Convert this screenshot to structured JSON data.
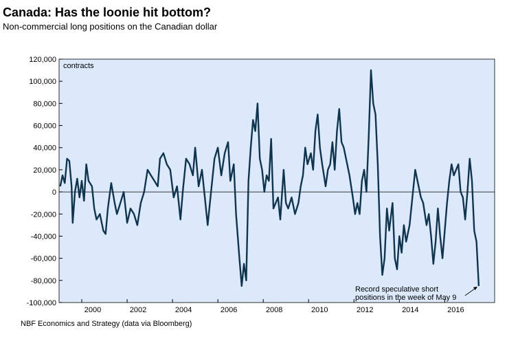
{
  "chart_data": {
    "type": "line",
    "title": "Canada: Has the loonie hit bottom?",
    "subtitle": "Non-commercial long positions on the Canadian dollar",
    "y_unit": "contracts",
    "source": "NBF Economics and Strategy (data via Bloomberg)",
    "annotation": [
      "Record speculative short",
      "positions in the week of May 9"
    ],
    "background": "#dbe9fb",
    "xlim": [
      1999.0,
      2018.2
    ],
    "xticks": [
      2000,
      2002,
      2004,
      2006,
      2008,
      2010,
      2012,
      2014,
      2016
    ],
    "ylim": [
      -100000,
      120000
    ],
    "yticks": [
      {
        "value": -100000,
        "label": "-100,000"
      },
      {
        "value": -80000,
        "label": "-80,000"
      },
      {
        "value": -60000,
        "label": "-60,000"
      },
      {
        "value": -40000,
        "label": "-40,000"
      },
      {
        "value": -20000,
        "label": "-20,000"
      },
      0,
      {
        "value": 20000,
        "label": "20,000"
      },
      {
        "value": 40000,
        "label": "40,000"
      },
      {
        "value": 60000,
        "label": "60,000"
      },
      {
        "value": 80000,
        "label": "80,000"
      },
      {
        "value": 100000,
        "label": "100,000"
      },
      {
        "value": 120000,
        "label": "120,000"
      }
    ],
    "x": [
      1999.05,
      1999.15,
      1999.25,
      1999.35,
      1999.45,
      1999.55,
      1999.6,
      1999.7,
      1999.8,
      1999.9,
      2000.0,
      2000.1,
      2000.2,
      2000.3,
      2000.45,
      2000.55,
      2000.65,
      2000.8,
      2000.95,
      2001.05,
      2001.15,
      2001.3,
      2001.45,
      2001.55,
      2001.7,
      2001.85,
      2002.0,
      2002.15,
      2002.3,
      2002.45,
      2002.6,
      2002.75,
      2002.9,
      2003.05,
      2003.2,
      2003.35,
      2003.45,
      2003.6,
      2003.75,
      2003.9,
      2004.05,
      2004.2,
      2004.35,
      2004.45,
      2004.6,
      2004.75,
      2004.9,
      2005.0,
      2005.15,
      2005.3,
      2005.45,
      2005.55,
      2005.7,
      2005.85,
      2006.0,
      2006.15,
      2006.3,
      2006.45,
      2006.55,
      2006.7,
      2006.8,
      2006.95,
      2007.05,
      2007.15,
      2007.25,
      2007.35,
      2007.45,
      2007.55,
      2007.65,
      2007.75,
      2007.85,
      2007.95,
      2008.05,
      2008.15,
      2008.25,
      2008.35,
      2008.45,
      2008.55,
      2008.65,
      2008.75,
      2008.9,
      2009.0,
      2009.1,
      2009.25,
      2009.4,
      2009.55,
      2009.65,
      2009.75,
      2009.85,
      2009.95,
      2010.1,
      2010.2,
      2010.3,
      2010.4,
      2010.5,
      2010.6,
      2010.75,
      2010.85,
      2010.95,
      2011.05,
      2011.15,
      2011.25,
      2011.35,
      2011.45,
      2011.55,
      2011.7,
      2011.8,
      2011.95,
      2012.05,
      2012.15,
      2012.25,
      2012.35,
      2012.45,
      2012.55,
      2012.65,
      2012.75,
      2012.85,
      2012.95,
      2013.05,
      2013.15,
      2013.25,
      2013.35,
      2013.45,
      2013.55,
      2013.7,
      2013.8,
      2013.9,
      2014.0,
      2014.1,
      2014.2,
      2014.3,
      2014.45,
      2014.6,
      2014.7,
      2014.8,
      2014.95,
      2015.05,
      2015.2,
      2015.3,
      2015.4,
      2015.5,
      2015.6,
      2015.7,
      2015.8,
      2015.9,
      2016.0,
      2016.1,
      2016.2,
      2016.3,
      2016.4,
      2016.5,
      2016.6,
      2016.7,
      2016.8,
      2016.9,
      2017.0,
      2017.1,
      2017.2,
      2017.3,
      2017.4,
      2017.5
    ],
    "series": [
      {
        "name": "Non-commercial long positions",
        "color": "#10344d",
        "values": [
          5000,
          15000,
          8000,
          30000,
          28000,
          5000,
          -28000,
          0,
          12000,
          -5000,
          10000,
          -8000,
          25000,
          10000,
          5000,
          -15000,
          -25000,
          -20000,
          -35000,
          -38000,
          -15000,
          8000,
          -10000,
          -20000,
          -10000,
          0,
          -28000,
          -15000,
          -20000,
          -30000,
          -10000,
          0,
          20000,
          15000,
          10000,
          5000,
          30000,
          35000,
          25000,
          20000,
          -5000,
          5000,
          -25000,
          0,
          30000,
          25000,
          15000,
          40000,
          5000,
          20000,
          -10000,
          -30000,
          0,
          30000,
          40000,
          15000,
          35000,
          45000,
          10000,
          25000,
          -20000,
          -60000,
          -85000,
          -65000,
          -80000,
          10000,
          40000,
          65000,
          55000,
          80000,
          30000,
          20000,
          0,
          15000,
          10000,
          48000,
          -15000,
          -10000,
          -5000,
          -25000,
          20000,
          -10000,
          -15000,
          -5000,
          -20000,
          -10000,
          5000,
          15000,
          40000,
          25000,
          35000,
          20000,
          55000,
          70000,
          40000,
          25000,
          5000,
          20000,
          25000,
          45000,
          20000,
          55000,
          75000,
          45000,
          40000,
          25000,
          15000,
          -5000,
          -20000,
          -10000,
          -20000,
          10000,
          20000,
          0,
          50000,
          110000,
          80000,
          70000,
          25000,
          -40000,
          -75000,
          -60000,
          -15000,
          -35000,
          -10000,
          -60000,
          -70000,
          -40000,
          -55000,
          -30000,
          -45000,
          -30000,
          0,
          20000,
          10000,
          -5000,
          -10000,
          -30000,
          -20000,
          -40000,
          -65000,
          -45000,
          -15000,
          -40000,
          -60000,
          -35000,
          -10000,
          10000,
          25000,
          15000,
          20000,
          25000,
          0,
          -5000,
          -25000,
          0,
          30000,
          10000,
          -35000,
          -45000,
          -85000
        ]
      }
    ]
  }
}
